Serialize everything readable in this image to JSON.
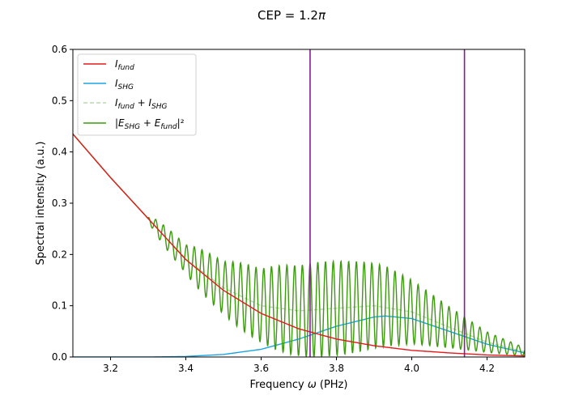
{
  "chart_data": {
    "type": "line",
    "title": "CEP = 1.2π",
    "title_prefix": "CEP = 1.2",
    "title_symbol": "π",
    "xlabel_prefix": "Frequency ",
    "xlabel_symbol": "ω",
    "xlabel_suffix": " (PHz)",
    "ylabel": "Spectral intensity (a.u.)",
    "xlim": [
      3.1,
      4.3
    ],
    "ylim": [
      0.0,
      0.6
    ],
    "xticks": [
      "3.2",
      "3.4",
      "3.6",
      "3.8",
      "4.0",
      "4.2"
    ],
    "xtick_values": [
      3.2,
      3.4,
      3.6,
      3.8,
      4.0,
      4.2
    ],
    "yticks": [
      "0.0",
      "0.1",
      "0.2",
      "0.3",
      "0.4",
      "0.5",
      "0.6"
    ],
    "ytick_values": [
      0.0,
      0.1,
      0.2,
      0.3,
      0.4,
      0.5,
      0.6
    ],
    "grid": false,
    "legend_position": "top-left",
    "vertical_lines": [
      {
        "x": 3.73,
        "color": "#8b1a9b"
      },
      {
        "x": 4.14,
        "color": "#8b1a9b"
      }
    ],
    "series": [
      {
        "name": "I_fund",
        "legend_main": "I",
        "legend_sub": "fund",
        "color": "#e31a1c",
        "style": "solid",
        "x": [
          3.1,
          3.2,
          3.3,
          3.4,
          3.5,
          3.6,
          3.7,
          3.8,
          3.9,
          4.0,
          4.1,
          4.2,
          4.3
        ],
        "y": [
          0.435,
          0.35,
          0.27,
          0.19,
          0.13,
          0.085,
          0.055,
          0.035,
          0.022,
          0.013,
          0.008,
          0.004,
          0.002
        ]
      },
      {
        "name": "I_SHG",
        "legend_main": "I",
        "legend_sub": "SHG",
        "color": "#1ba5e0",
        "style": "solid",
        "x": [
          3.1,
          3.3,
          3.4,
          3.5,
          3.6,
          3.7,
          3.8,
          3.9,
          3.93,
          4.0,
          4.1,
          4.2,
          4.3
        ],
        "y": [
          0.0,
          0.0,
          0.001,
          0.005,
          0.015,
          0.035,
          0.06,
          0.078,
          0.08,
          0.075,
          0.05,
          0.025,
          0.008
        ]
      },
      {
        "name": "I_fund + I_SHG",
        "legend_main": "I",
        "legend_sub": "fund",
        "legend_plus": " + I",
        "legend_sub2": "SHG",
        "color": "#b6d7a8",
        "style": "dashed",
        "x": [
          3.1,
          3.2,
          3.3,
          3.4,
          3.5,
          3.6,
          3.7,
          3.8,
          3.9,
          4.0,
          4.1,
          4.2,
          4.3
        ],
        "y": [
          0.435,
          0.35,
          0.27,
          0.191,
          0.135,
          0.1,
          0.09,
          0.095,
          0.1,
          0.088,
          0.058,
          0.029,
          0.01
        ]
      },
      {
        "name": "|E_SHG + E_fund|²",
        "legend_prefix": "|E",
        "legend_sub": "SHG",
        "legend_plus": " + E",
        "legend_sub2": "fund",
        "legend_suffix": "|²",
        "color": "#3c9a0e",
        "style": "solid",
        "oscillation_period": 0.0205,
        "oscillation_phase": 3.73,
        "envelope_note": "interference: I_fund + I_SHG + 2*sqrt(I_fund*I_SHG)*cos(2π(x-3.73)/0.0205)"
      }
    ]
  }
}
